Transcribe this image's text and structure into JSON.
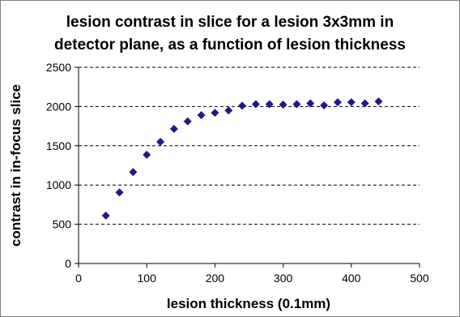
{
  "chart_data": {
    "type": "scatter",
    "title_lines": [
      "lesion contrast in slice for a lesion 3x3mm in",
      "detector plane, as a function of lesion thickness"
    ],
    "xlabel": "lesion thickness (0.1mm)",
    "ylabel": "contrast in in-focus slice",
    "xlim": [
      0,
      500
    ],
    "ylim": [
      0,
      2500
    ],
    "xticks": [
      0,
      100,
      200,
      300,
      400,
      500
    ],
    "yticks": [
      0,
      500,
      1000,
      1500,
      2000,
      2500
    ],
    "grid": "horizontal dashed",
    "marker": "diamond",
    "marker_color": "#1c1c80",
    "points": [
      {
        "x": 40,
        "y": 610
      },
      {
        "x": 60,
        "y": 905
      },
      {
        "x": 80,
        "y": 1165
      },
      {
        "x": 100,
        "y": 1385
      },
      {
        "x": 120,
        "y": 1550
      },
      {
        "x": 140,
        "y": 1715
      },
      {
        "x": 160,
        "y": 1810
      },
      {
        "x": 180,
        "y": 1890
      },
      {
        "x": 200,
        "y": 1920
      },
      {
        "x": 220,
        "y": 1950
      },
      {
        "x": 240,
        "y": 2010
      },
      {
        "x": 260,
        "y": 2030
      },
      {
        "x": 280,
        "y": 2030
      },
      {
        "x": 300,
        "y": 2025
      },
      {
        "x": 320,
        "y": 2030
      },
      {
        "x": 340,
        "y": 2040
      },
      {
        "x": 360,
        "y": 2015
      },
      {
        "x": 380,
        "y": 2055
      },
      {
        "x": 400,
        "y": 2055
      },
      {
        "x": 420,
        "y": 2040
      },
      {
        "x": 440,
        "y": 2065
      }
    ]
  }
}
